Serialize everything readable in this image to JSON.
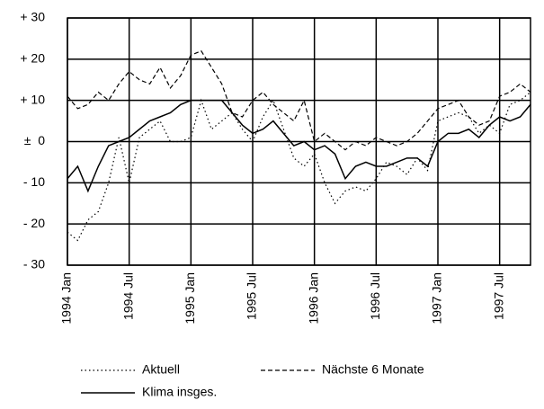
{
  "chart_data": {
    "type": "line",
    "categories": [
      "1994 Jan",
      null,
      null,
      null,
      null,
      null,
      "1994 Jul",
      null,
      null,
      null,
      null,
      null,
      "1995 Jan",
      null,
      null,
      null,
      null,
      null,
      "1995 Jul",
      null,
      null,
      null,
      null,
      null,
      "1996 Jan",
      null,
      null,
      null,
      null,
      null,
      "1996 Jul",
      null,
      null,
      null,
      null,
      null,
      "1997 Jan",
      null,
      null,
      null,
      null,
      null,
      "1997 Jul",
      null,
      null,
      null
    ],
    "series": [
      {
        "name": "Aktuell",
        "color": "#000000",
        "style": "dotted",
        "values": [
          -22,
          -24,
          -19,
          -17,
          -10,
          1,
          -10,
          1,
          3,
          5,
          0,
          0,
          1,
          10,
          3,
          5,
          7,
          3,
          0,
          6,
          10,
          3,
          -4,
          -6,
          -3,
          -10,
          -15,
          -12,
          -11,
          -12,
          -9,
          -5,
          -6,
          -8,
          -4,
          -7,
          5,
          6,
          7,
          6,
          2,
          4,
          2,
          9,
          10,
          12
        ]
      },
      {
        "name": "Nächste 6 Monate",
        "color": "#000000",
        "style": "dashed",
        "values": [
          11,
          8,
          9,
          12,
          10,
          14,
          17,
          15,
          14,
          18,
          13,
          16,
          21,
          22,
          18,
          14,
          7,
          6,
          10,
          12,
          9,
          7,
          5,
          10,
          0,
          2,
          0,
          -2,
          0,
          -1,
          1,
          0,
          -1,
          0,
          2,
          5,
          8,
          9,
          10,
          6,
          4,
          5,
          11,
          12,
          14,
          12
        ]
      },
      {
        "name": "Klima insges.",
        "color": "#000000",
        "style": "solid",
        "values": [
          -9,
          -6,
          -12,
          -6,
          -1,
          0,
          1,
          3,
          5,
          6,
          7,
          9,
          10,
          10,
          10,
          10,
          7,
          4,
          2,
          3,
          5,
          2,
          -1,
          0,
          -2,
          -1,
          -3,
          -9,
          -6,
          -5,
          -6,
          -6,
          -5,
          -4,
          -4,
          -6,
          0,
          2,
          2,
          3,
          1,
          4,
          6,
          5,
          6,
          9
        ]
      }
    ],
    "ylim": [
      -30,
      30
    ],
    "yticks": [
      {
        "value": 30,
        "label": "+ 30"
      },
      {
        "value": 20,
        "label": "+ 20"
      },
      {
        "value": 10,
        "label": "+ 10"
      },
      {
        "value": 0,
        "label": "±  0"
      },
      {
        "value": -10,
        "label": "- 10"
      },
      {
        "value": -20,
        "label": "- 20"
      },
      {
        "value": -30,
        "label": "- 30"
      }
    ],
    "grid": true
  }
}
